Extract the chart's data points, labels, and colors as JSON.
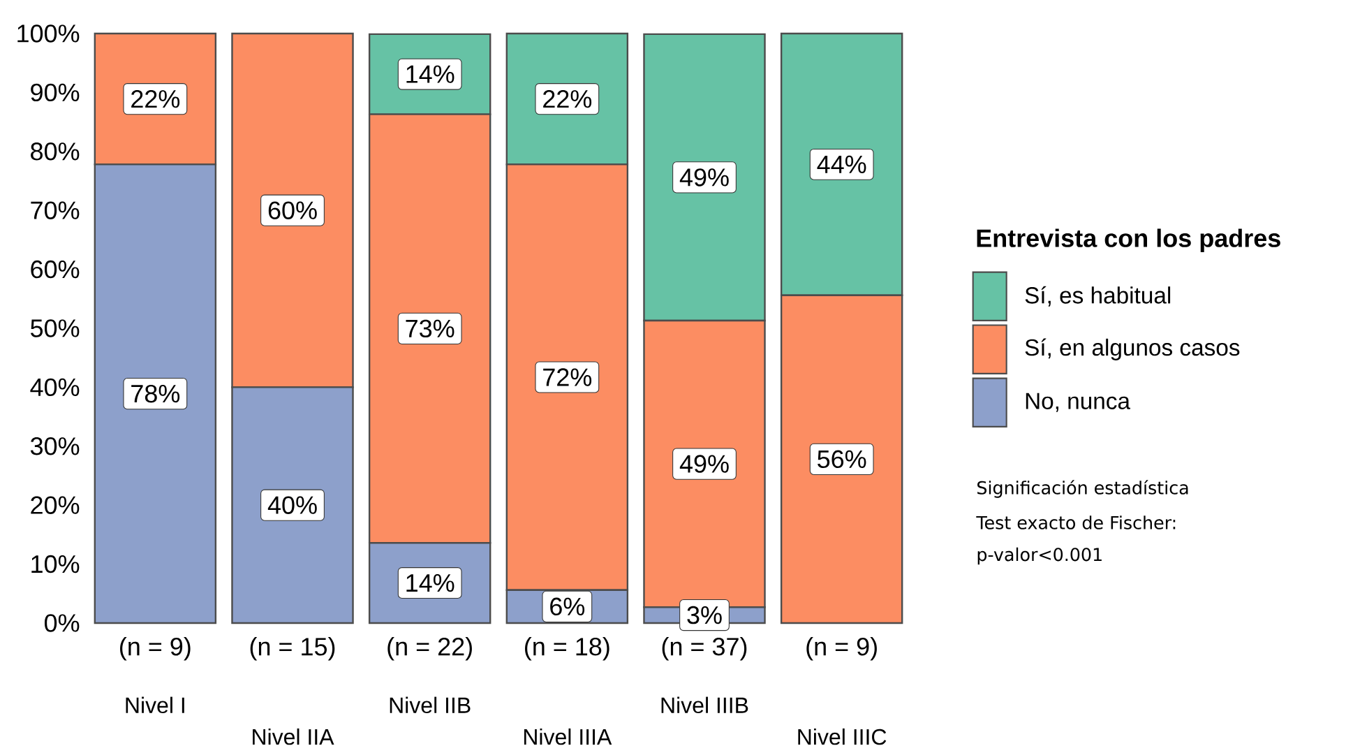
{
  "chart_data": {
    "type": "bar",
    "stacked": true,
    "categories": [
      "(n = 9)",
      "(n = 15)",
      "(n = 22)",
      "(n = 18)",
      "(n = 37)",
      "(n = 9)"
    ],
    "series": [
      {
        "name": "No, nunca",
        "color": "#8da0cb",
        "values": [
          77.8,
          40,
          13.6,
          5.6,
          2.7,
          0
        ],
        "value_labels": [
          "78%",
          "40%",
          "14%",
          "6%",
          "3%",
          null
        ]
      },
      {
        "name": "Sí, en algunos casos",
        "color": "#fc8d62",
        "values": [
          22.2,
          60,
          72.7,
          72.2,
          48.6,
          55.6
        ],
        "value_labels": [
          "22%",
          "60%",
          "73%",
          "72%",
          "49%",
          "56%"
        ]
      },
      {
        "name": "Sí, es habitual",
        "color": "#66c2a5",
        "values": [
          0,
          0,
          13.6,
          22.2,
          48.6,
          44.4
        ],
        "value_labels": [
          null,
          null,
          "14%",
          "22%",
          "49%",
          "44%"
        ]
      }
    ],
    "ylim": [
      0,
      100
    ],
    "yticks": [
      {
        "value": 0,
        "label": "0%"
      },
      {
        "value": 10,
        "label": "10%"
      },
      {
        "value": 20,
        "label": "20%"
      },
      {
        "value": 30,
        "label": "30%"
      },
      {
        "value": 40,
        "label": "40%"
      },
      {
        "value": 50,
        "label": "50%"
      },
      {
        "value": 60,
        "label": "60%"
      },
      {
        "value": 70,
        "label": "70%"
      },
      {
        "value": 80,
        "label": "80%"
      },
      {
        "value": 90,
        "label": "90%"
      },
      {
        "value": 100,
        "label": "100%"
      }
    ],
    "legend": "right",
    "legend_title": "Entrevista con los padres",
    "annotations": [
      "Nivel I",
      "Nivel IIA",
      "Nivel IIB",
      "Nivel IIIA",
      "Nivel IIIB",
      "Nivel IIIC",
      "Significación estadística",
      "Test exacto de Fischer:",
      "p-valor<0.001"
    ]
  }
}
